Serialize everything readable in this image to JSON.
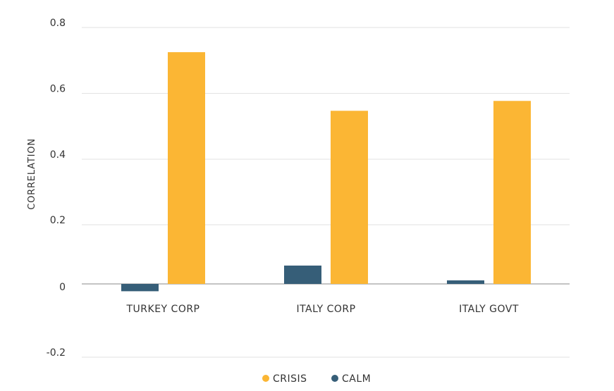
{
  "chart_data": {
    "type": "bar",
    "title": "",
    "xlabel": "",
    "ylabel": "CORRELATION",
    "ylim": [
      -0.2,
      0.8
    ],
    "yticks": [
      "0.8",
      "0.6",
      "0.4",
      "0.2",
      "0",
      "-0.2"
    ],
    "yticks_values": [
      0.8,
      0.6,
      0.4,
      0.2,
      0,
      -0.2
    ],
    "categories": [
      "TURKEY CORP",
      "ITALY CORP",
      "ITALY GOVT"
    ],
    "series": [
      {
        "name": "CALM",
        "color": "#365E78",
        "values": [
          -0.02,
          0.062,
          0.012
        ]
      },
      {
        "name": "CRISIS",
        "color": "#FBB634",
        "values": [
          0.725,
          0.547,
          0.577
        ]
      }
    ],
    "legend_order": [
      "CRISIS",
      "CALM"
    ],
    "legend_position": "bottom",
    "grid": true
  }
}
